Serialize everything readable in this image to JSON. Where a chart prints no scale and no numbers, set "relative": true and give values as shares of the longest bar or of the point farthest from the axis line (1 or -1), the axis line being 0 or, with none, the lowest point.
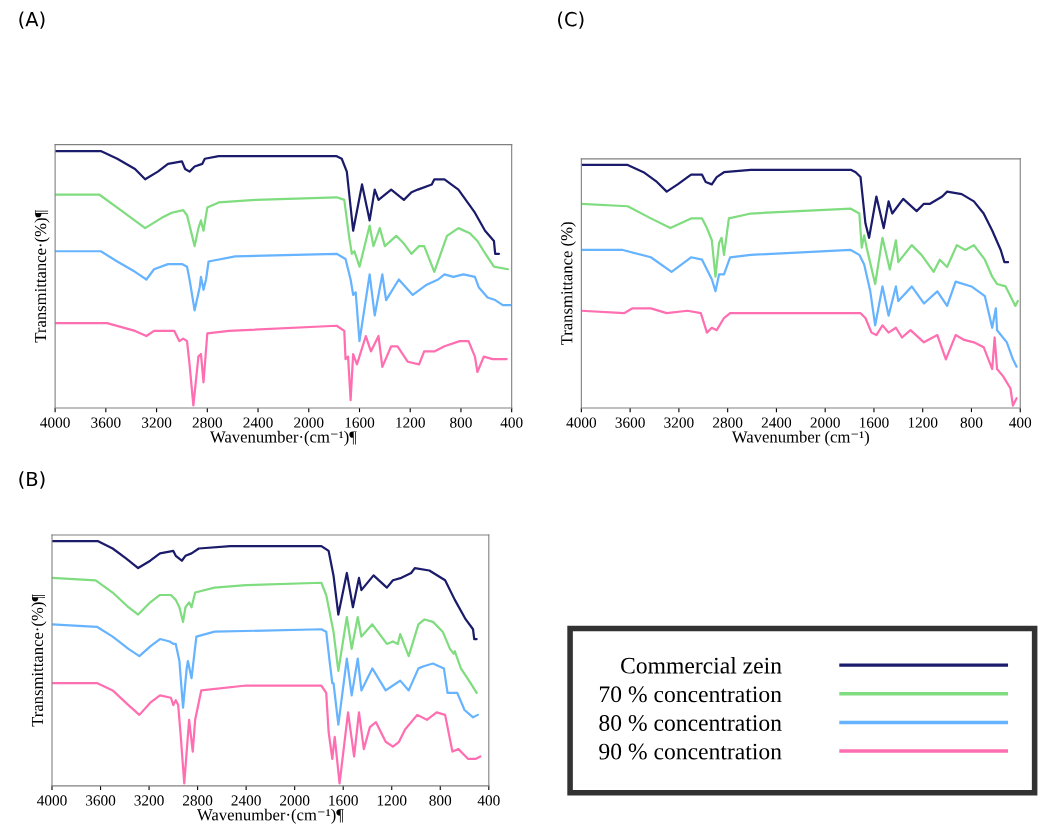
{
  "chart_data": [
    {
      "type": "line",
      "title": "(A)",
      "xlabel": "Wavenumber·(cm⁻¹)¶",
      "ylabel": "Transmittance·(%)¶",
      "relative": true,
      "xlim": [
        4000,
        400
      ],
      "xticks": [
        4000,
        3600,
        3200,
        2800,
        2400,
        2000,
        1600,
        1200,
        800,
        400
      ],
      "tick_labels": "x",
      "grid": false,
      "legend": false,
      "marker": "none",
      "line_style": "solid",
      "series": [
        {
          "color": "#1b1b6b",
          "x": [
            4000,
            3640,
            3510,
            3370,
            3290,
            3190,
            3110,
            3000,
            2975,
            2940,
            2900,
            2840,
            2820,
            2710,
            2310,
            1780,
            1740,
            1700,
            1650,
            1580,
            1520,
            1480,
            1450,
            1350,
            1250,
            1190,
            1140,
            1030,
            1010,
            930,
            820,
            690,
            610,
            540,
            530,
            500
          ],
          "values": [
            1.0,
            1.0,
            0.97,
            0.93,
            0.89,
            0.92,
            0.95,
            0.96,
            0.93,
            0.92,
            0.94,
            0.95,
            0.97,
            0.98,
            0.98,
            0.98,
            0.97,
            0.92,
            0.69,
            0.87,
            0.73,
            0.85,
            0.81,
            0.85,
            0.81,
            0.84,
            0.85,
            0.87,
            0.89,
            0.89,
            0.85,
            0.76,
            0.69,
            0.65,
            0.6,
            0.6
          ]
        },
        {
          "color": "#7fdc7f",
          "x": [
            4000,
            3650,
            3510,
            3290,
            3160,
            3080,
            2990,
            2960,
            2940,
            2900,
            2870,
            2850,
            2830,
            2800,
            2710,
            2420,
            1780,
            1720,
            1680,
            1660,
            1640,
            1600,
            1520,
            1490,
            1440,
            1400,
            1310,
            1250,
            1190,
            1130,
            1090,
            1010,
            910,
            820,
            730,
            670,
            620,
            540,
            430
          ],
          "values": [
            0.83,
            0.83,
            0.78,
            0.7,
            0.74,
            0.76,
            0.77,
            0.75,
            0.71,
            0.63,
            0.7,
            0.73,
            0.69,
            0.78,
            0.8,
            0.81,
            0.82,
            0.81,
            0.66,
            0.6,
            0.61,
            0.55,
            0.71,
            0.63,
            0.7,
            0.63,
            0.67,
            0.64,
            0.6,
            0.63,
            0.63,
            0.53,
            0.67,
            0.7,
            0.68,
            0.65,
            0.61,
            0.55,
            0.54
          ]
        },
        {
          "color": "#66b3ff",
          "x": [
            4000,
            3640,
            3510,
            3370,
            3280,
            3220,
            3110,
            3000,
            2960,
            2940,
            2900,
            2860,
            2850,
            2830,
            2810,
            2790,
            2580,
            1780,
            1710,
            1670,
            1650,
            1630,
            1600,
            1520,
            1480,
            1420,
            1390,
            1290,
            1180,
            1070,
            980,
            930,
            860,
            780,
            690,
            660,
            590,
            530,
            470,
            410
          ],
          "values": [
            0.61,
            0.61,
            0.57,
            0.53,
            0.5,
            0.54,
            0.56,
            0.56,
            0.55,
            0.5,
            0.38,
            0.47,
            0.51,
            0.46,
            0.5,
            0.57,
            0.59,
            0.6,
            0.58,
            0.5,
            0.44,
            0.45,
            0.26,
            0.52,
            0.36,
            0.52,
            0.42,
            0.5,
            0.44,
            0.48,
            0.5,
            0.52,
            0.51,
            0.52,
            0.51,
            0.47,
            0.43,
            0.42,
            0.4,
            0.4
          ]
        },
        {
          "color": "#ff6eb0",
          "x": [
            4000,
            3590,
            3370,
            3280,
            3220,
            3060,
            3020,
            2990,
            2960,
            2940,
            2910,
            2870,
            2850,
            2830,
            2800,
            2630,
            1780,
            1720,
            1710,
            1690,
            1670,
            1650,
            1620,
            1550,
            1510,
            1450,
            1420,
            1350,
            1300,
            1220,
            1130,
            1090,
            1010,
            930,
            810,
            740,
            690,
            670,
            620,
            550,
            440
          ],
          "values": [
            0.33,
            0.33,
            0.3,
            0.28,
            0.3,
            0.3,
            0.26,
            0.27,
            0.26,
            0.17,
            0.01,
            0.2,
            0.21,
            0.1,
            0.29,
            0.3,
            0.32,
            0.3,
            0.19,
            0.2,
            0.03,
            0.21,
            0.17,
            0.28,
            0.22,
            0.28,
            0.16,
            0.24,
            0.24,
            0.18,
            0.17,
            0.22,
            0.22,
            0.24,
            0.26,
            0.26,
            0.2,
            0.14,
            0.2,
            0.19,
            0.19
          ]
        }
      ]
    },
    {
      "type": "line",
      "title": "(C)",
      "xlabel": "Wavenumber (cm⁻¹)",
      "ylabel": "Transmittance (%)",
      "relative": true,
      "xlim": [
        4000,
        400
      ],
      "xticks": [
        4000,
        3600,
        3200,
        2800,
        2400,
        2000,
        1600,
        1200,
        800,
        400
      ],
      "tick_labels": "x",
      "grid": false,
      "legend": false,
      "marker": "none",
      "line_style": "solid",
      "series": [
        {
          "color": "#1b1b6b",
          "x": [
            4000,
            3620,
            3490,
            3380,
            3300,
            3210,
            3100,
            3010,
            2980,
            2930,
            2890,
            2830,
            2610,
            1790,
            1750,
            1710,
            1670,
            1640,
            1580,
            1520,
            1480,
            1450,
            1360,
            1250,
            1190,
            1140,
            1040,
            1000,
            880,
            780,
            700,
            630,
            560,
            530,
            500
          ],
          "values": [
            1.0,
            1.0,
            0.97,
            0.93,
            0.89,
            0.92,
            0.96,
            0.96,
            0.93,
            0.92,
            0.95,
            0.97,
            0.98,
            0.98,
            0.97,
            0.95,
            0.76,
            0.7,
            0.87,
            0.74,
            0.85,
            0.8,
            0.86,
            0.81,
            0.84,
            0.84,
            0.87,
            0.89,
            0.88,
            0.85,
            0.8,
            0.73,
            0.65,
            0.6,
            0.6
          ]
        },
        {
          "color": "#7fdc7f",
          "x": [
            4000,
            3620,
            3430,
            3270,
            3100,
            3010,
            2970,
            2930,
            2900,
            2870,
            2850,
            2830,
            2790,
            2610,
            1790,
            1720,
            1700,
            1680,
            1660,
            1590,
            1530,
            1470,
            1420,
            1400,
            1290,
            1210,
            1110,
            1060,
            1000,
            920,
            850,
            780,
            690,
            630,
            590,
            520,
            440,
            420
          ],
          "values": [
            0.84,
            0.83,
            0.78,
            0.74,
            0.78,
            0.78,
            0.74,
            0.69,
            0.54,
            0.68,
            0.7,
            0.63,
            0.78,
            0.8,
            0.82,
            0.8,
            0.66,
            0.71,
            0.66,
            0.51,
            0.7,
            0.57,
            0.69,
            0.6,
            0.67,
            0.63,
            0.56,
            0.61,
            0.58,
            0.67,
            0.65,
            0.67,
            0.61,
            0.54,
            0.51,
            0.5,
            0.42,
            0.44
          ]
        },
        {
          "color": "#66b3ff",
          "x": [
            4000,
            3660,
            3430,
            3260,
            3100,
            3010,
            2970,
            2930,
            2900,
            2870,
            2830,
            2780,
            2610,
            1790,
            1720,
            1680,
            1630,
            1590,
            1530,
            1480,
            1420,
            1400,
            1290,
            1190,
            1080,
            1000,
            930,
            800,
            690,
            630,
            600,
            590,
            510,
            460,
            430
          ],
          "values": [
            0.65,
            0.65,
            0.62,
            0.56,
            0.62,
            0.61,
            0.57,
            0.53,
            0.48,
            0.55,
            0.55,
            0.62,
            0.63,
            0.65,
            0.63,
            0.59,
            0.48,
            0.34,
            0.5,
            0.38,
            0.5,
            0.44,
            0.5,
            0.43,
            0.48,
            0.42,
            0.52,
            0.5,
            0.46,
            0.33,
            0.41,
            0.32,
            0.27,
            0.2,
            0.17
          ]
        },
        {
          "color": "#ff6eb0",
          "x": [
            4000,
            3650,
            3580,
            3430,
            3300,
            3130,
            3020,
            2970,
            2930,
            2890,
            2830,
            2780,
            2340,
            1710,
            1670,
            1620,
            1580,
            1530,
            1480,
            1420,
            1370,
            1300,
            1190,
            1080,
            1010,
            930,
            860,
            780,
            700,
            630,
            610,
            590,
            540,
            480,
            460,
            430
          ],
          "values": [
            0.4,
            0.39,
            0.41,
            0.41,
            0.39,
            0.4,
            0.39,
            0.31,
            0.33,
            0.32,
            0.37,
            0.39,
            0.39,
            0.39,
            0.37,
            0.31,
            0.3,
            0.34,
            0.31,
            0.33,
            0.29,
            0.32,
            0.27,
            0.3,
            0.2,
            0.3,
            0.28,
            0.27,
            0.25,
            0.16,
            0.29,
            0.16,
            0.13,
            0.08,
            0.01,
            0.04
          ]
        }
      ]
    },
    {
      "type": "line",
      "title": "(B)",
      "xlabel": "Wavenumber·(cm⁻¹)¶",
      "ylabel": "Transmittance·(%)¶",
      "relative": true,
      "xlim": [
        4000,
        400
      ],
      "xticks": [
        4000,
        3600,
        3200,
        2800,
        2400,
        2000,
        1600,
        1200,
        800,
        400
      ],
      "tick_labels": "x",
      "grid": false,
      "legend": "right",
      "marker": "none",
      "line_style": "solid",
      "series": [
        {
          "name": "Commercial zein",
          "color": "#1b1b6b",
          "x": [
            4000,
            3620,
            3500,
            3390,
            3290,
            3190,
            3110,
            3000,
            2980,
            2930,
            2900,
            2850,
            2790,
            2530,
            1780,
            1720,
            1680,
            1640,
            1570,
            1520,
            1470,
            1450,
            1350,
            1240,
            1190,
            1120,
            1040,
            1010,
            890,
            760,
            680,
            590,
            530,
            520,
            500
          ],
          "values": [
            1.0,
            1.0,
            0.97,
            0.93,
            0.89,
            0.92,
            0.95,
            0.96,
            0.94,
            0.92,
            0.94,
            0.95,
            0.97,
            0.98,
            0.98,
            0.96,
            0.86,
            0.7,
            0.87,
            0.73,
            0.85,
            0.8,
            0.86,
            0.81,
            0.84,
            0.85,
            0.87,
            0.89,
            0.88,
            0.84,
            0.76,
            0.68,
            0.64,
            0.6,
            0.6
          ]
        },
        {
          "name": "70 % concentration",
          "color": "#7fdc7f",
          "x": [
            4000,
            3640,
            3500,
            3370,
            3290,
            3190,
            3110,
            3020,
            2980,
            2950,
            2920,
            2900,
            2870,
            2850,
            2820,
            2660,
            2400,
            1780,
            1740,
            1680,
            1640,
            1570,
            1530,
            1480,
            1450,
            1360,
            1240,
            1190,
            1150,
            1130,
            1060,
            980,
            930,
            860,
            780,
            720,
            690,
            680,
            630,
            550,
            500
          ],
          "values": [
            0.85,
            0.84,
            0.79,
            0.73,
            0.7,
            0.75,
            0.78,
            0.78,
            0.76,
            0.73,
            0.67,
            0.73,
            0.75,
            0.73,
            0.79,
            0.81,
            0.82,
            0.83,
            0.78,
            0.63,
            0.47,
            0.69,
            0.56,
            0.69,
            0.61,
            0.66,
            0.58,
            0.59,
            0.58,
            0.62,
            0.53,
            0.66,
            0.68,
            0.67,
            0.63,
            0.56,
            0.54,
            0.55,
            0.48,
            0.42,
            0.38
          ]
        },
        {
          "name": "80 % concentration",
          "color": "#66b3ff",
          "x": [
            4000,
            3630,
            3500,
            3370,
            3280,
            3190,
            3110,
            3030,
            3000,
            2980,
            2950,
            2920,
            2890,
            2880,
            2850,
            2810,
            2660,
            1780,
            1740,
            1710,
            1690,
            1680,
            1640,
            1570,
            1530,
            1480,
            1450,
            1360,
            1250,
            1190,
            1130,
            1060,
            980,
            930,
            860,
            770,
            740,
            660,
            600,
            530,
            490
          ],
          "values": [
            0.66,
            0.65,
            0.61,
            0.56,
            0.53,
            0.57,
            0.6,
            0.59,
            0.58,
            0.58,
            0.51,
            0.32,
            0.48,
            0.51,
            0.44,
            0.61,
            0.63,
            0.64,
            0.63,
            0.5,
            0.42,
            0.42,
            0.25,
            0.52,
            0.37,
            0.52,
            0.39,
            0.48,
            0.39,
            0.41,
            0.43,
            0.39,
            0.48,
            0.49,
            0.5,
            0.48,
            0.38,
            0.38,
            0.31,
            0.28,
            0.29
          ]
        },
        {
          "name": "90 % concentration",
          "color": "#ff6eb0",
          "x": [
            4000,
            3630,
            3500,
            3370,
            3280,
            3190,
            3110,
            3020,
            3000,
            2980,
            2960,
            2940,
            2910,
            2890,
            2870,
            2840,
            2820,
            2770,
            2400,
            1780,
            1740,
            1720,
            1690,
            1670,
            1630,
            1560,
            1510,
            1470,
            1430,
            1380,
            1330,
            1250,
            1190,
            1140,
            1090,
            990,
            910,
            830,
            760,
            700,
            650,
            570,
            510,
            470
          ],
          "values": [
            0.42,
            0.42,
            0.39,
            0.33,
            0.29,
            0.34,
            0.37,
            0.36,
            0.33,
            0.35,
            0.33,
            0.21,
            0.01,
            0.14,
            0.27,
            0.14,
            0.27,
            0.39,
            0.41,
            0.41,
            0.38,
            0.22,
            0.11,
            0.2,
            0.01,
            0.3,
            0.12,
            0.3,
            0.15,
            0.24,
            0.26,
            0.18,
            0.16,
            0.18,
            0.23,
            0.29,
            0.27,
            0.3,
            0.29,
            0.14,
            0.15,
            0.11,
            0.11,
            0.12
          ]
        }
      ]
    }
  ]
}
